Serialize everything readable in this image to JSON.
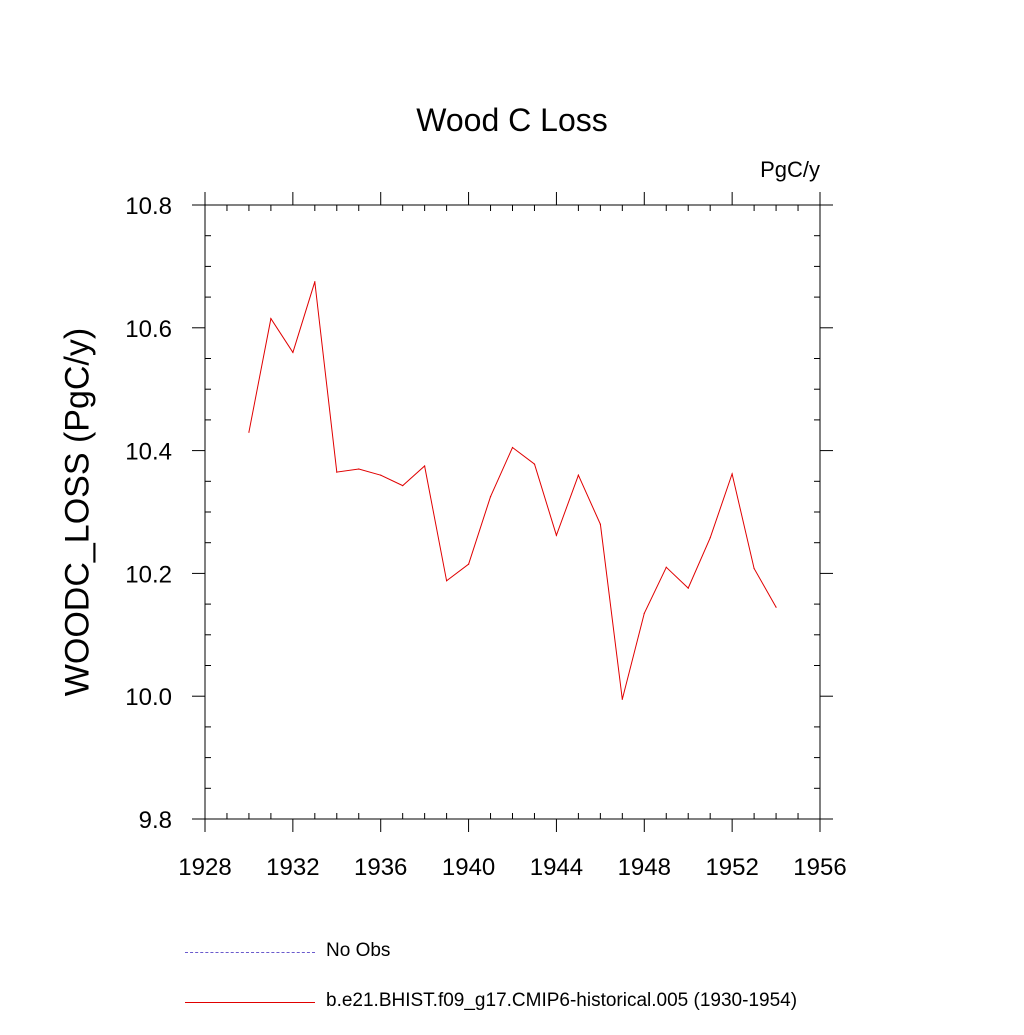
{
  "chart_data": {
    "type": "line",
    "title": "Wood C Loss",
    "units": "PgC/y",
    "ylabel": "WOODC_LOSS  (PgC/y)",
    "xlabel": "",
    "xlim": [
      1928,
      1956
    ],
    "ylim": [
      9.8,
      10.8
    ],
    "x_ticks": [
      1928,
      1932,
      1936,
      1940,
      1944,
      1948,
      1952,
      1956
    ],
    "y_ticks": [
      "9.8",
      "10.0",
      "10.2",
      "10.4",
      "10.6",
      "10.8"
    ],
    "grid": false,
    "series": [
      {
        "name": "b.e21.BHIST.f09_g17.CMIP6-historical.005 (1930-1954)",
        "color": "#e00000",
        "x": [
          1930,
          1931,
          1932,
          1933,
          1934,
          1935,
          1936,
          1937,
          1938,
          1939,
          1940,
          1941,
          1942,
          1943,
          1944,
          1945,
          1946,
          1947,
          1948,
          1949,
          1950,
          1951,
          1952,
          1953,
          1954
        ],
        "values": [
          10.43,
          10.615,
          10.56,
          10.675,
          10.365,
          10.37,
          10.36,
          10.343,
          10.375,
          10.188,
          10.215,
          10.325,
          10.405,
          10.378,
          10.262,
          10.36,
          10.28,
          9.995,
          10.135,
          10.21,
          10.176,
          10.258,
          10.362,
          10.208,
          10.145
        ]
      }
    ]
  },
  "legend": {
    "items": [
      {
        "label": "No Obs",
        "style": "dashed",
        "color": "#6a5acd"
      },
      {
        "label": "b.e21.BHIST.f09_g17.CMIP6-historical.005 (1930-1954)",
        "style": "solid",
        "color": "#e00000"
      }
    ]
  }
}
